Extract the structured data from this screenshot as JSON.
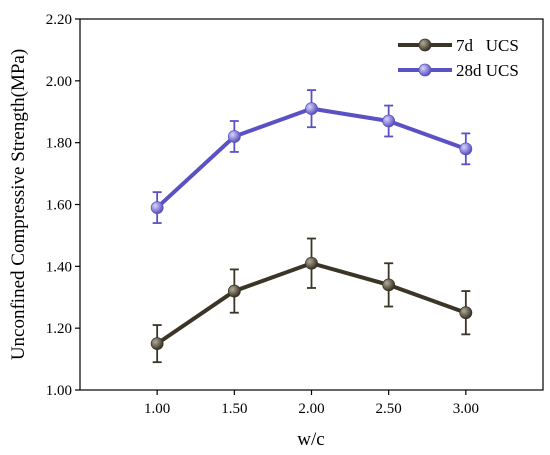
{
  "chart_data": {
    "type": "line",
    "title": "",
    "xlabel": "w/c",
    "ylabel": "Unconfined Compressive Strength(MPa)",
    "x": [
      1.0,
      1.5,
      2.0,
      2.5,
      3.0
    ],
    "xtick_labels": [
      "1.00",
      "1.50",
      "2.00",
      "2.50",
      "3.00"
    ],
    "xlim": [
      0.5,
      3.5
    ],
    "ylim": [
      1.0,
      2.2
    ],
    "ytick_labels": [
      "1.00",
      "1.20",
      "1.40",
      "1.60",
      "1.80",
      "2.00",
      "2.20"
    ],
    "yticks": [
      1.0,
      1.2,
      1.4,
      1.6,
      1.8,
      2.0,
      2.2
    ],
    "grid": false,
    "legend_position": "top-right",
    "series": [
      {
        "name": "7d   UCS",
        "color": "#3a3526",
        "values": [
          1.15,
          1.32,
          1.41,
          1.34,
          1.25
        ],
        "error": [
          0.06,
          0.07,
          0.08,
          0.07,
          0.07
        ]
      },
      {
        "name": "28d UCS",
        "color": "#5a52c4",
        "values": [
          1.59,
          1.82,
          1.91,
          1.87,
          1.78
        ],
        "error": [
          0.05,
          0.05,
          0.06,
          0.05,
          0.05
        ]
      }
    ]
  }
}
